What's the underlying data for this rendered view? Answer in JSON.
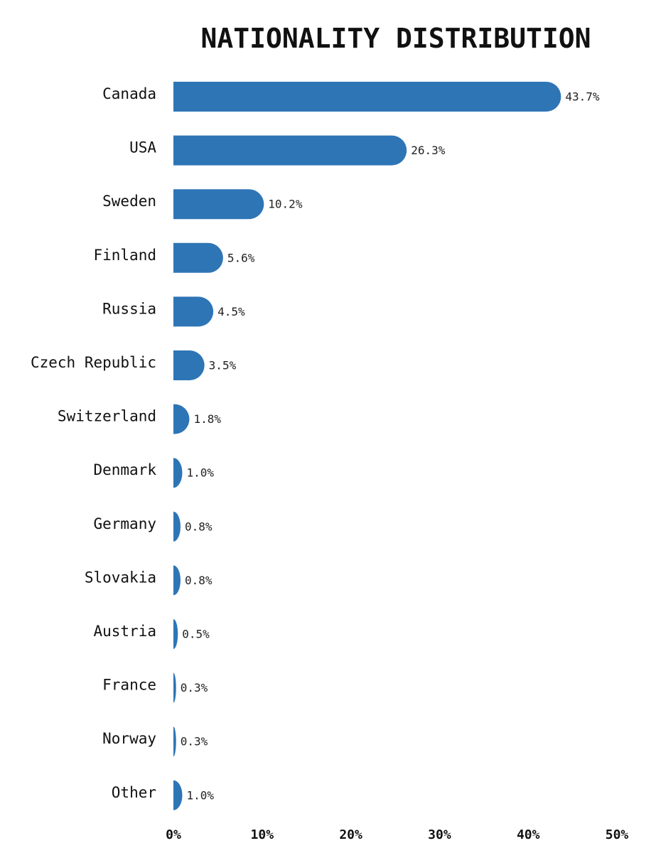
{
  "chart_data": {
    "type": "bar",
    "orientation": "horizontal",
    "title": "NATIONALITY DISTRIBUTION",
    "xlabel": "",
    "ylabel": "",
    "categories": [
      "Canada",
      "USA",
      "Sweden",
      "Finland",
      "Russia",
      "Czech Republic",
      "Switzerland",
      "Denmark",
      "Germany",
      "Slovakia",
      "Austria",
      "France",
      "Norway",
      "Other"
    ],
    "values": [
      43.7,
      26.3,
      10.2,
      5.6,
      4.5,
      3.5,
      1.8,
      1.0,
      0.8,
      0.8,
      0.5,
      0.3,
      0.3,
      1.0
    ],
    "value_labels": [
      "43.7%",
      "26.3%",
      "10.2%",
      "5.6%",
      "4.5%",
      "3.5%",
      "1.8%",
      "1.0%",
      "0.8%",
      "0.8%",
      "0.5%",
      "0.3%",
      "0.3%",
      "1.0%"
    ],
    "xlim": [
      0,
      50
    ],
    "x_ticks": [
      0,
      10,
      20,
      30,
      40,
      50
    ],
    "x_tick_labels": [
      "0%",
      "10%",
      "20%",
      "30%",
      "40%",
      "50%"
    ],
    "grid": false,
    "legend": "none",
    "bar_color": "#2e75b6"
  }
}
